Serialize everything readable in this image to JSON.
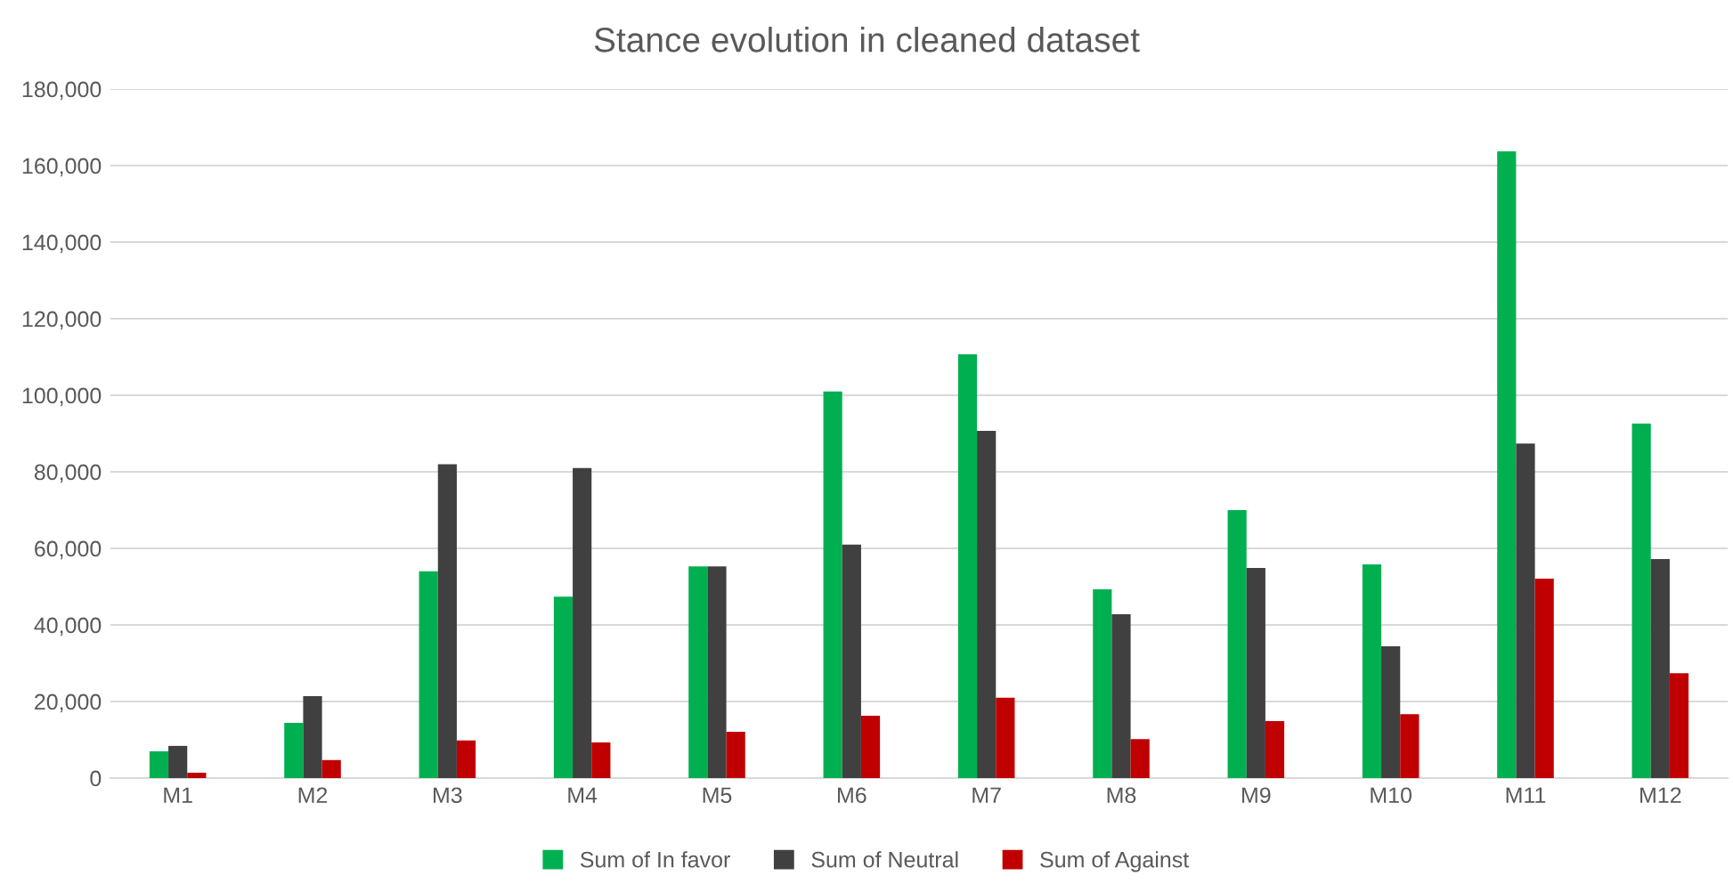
{
  "chart_data": {
    "type": "bar",
    "title": "Stance evolution in cleaned dataset",
    "categories": [
      "M1",
      "M2",
      "M3",
      "M4",
      "M5",
      "M6",
      "M7",
      "M8",
      "M9",
      "M10",
      "M11",
      "M12"
    ],
    "series": [
      {
        "name": "Sum of In favor",
        "color": "#00b050",
        "values": [
          7000,
          14400,
          54000,
          47400,
          55300,
          101000,
          110700,
          49300,
          70000,
          55800,
          163700,
          92600
        ]
      },
      {
        "name": "Sum of Neutral",
        "color": "#404040",
        "values": [
          8400,
          21400,
          82000,
          81000,
          55300,
          61000,
          90700,
          42800,
          54900,
          34400,
          87400,
          57200
        ]
      },
      {
        "name": "Sum of Against",
        "color": "#c00000",
        "values": [
          1400,
          4700,
          9800,
          9300,
          12100,
          16300,
          21000,
          10200,
          14900,
          16700,
          52100,
          27400
        ]
      }
    ],
    "ylim": [
      0,
      180000
    ],
    "yticks": [
      {
        "value": 0,
        "label": "0"
      },
      {
        "value": 20000,
        "label": "20,000"
      },
      {
        "value": 40000,
        "label": "40,000"
      },
      {
        "value": 60000,
        "label": "60,000"
      },
      {
        "value": 80000,
        "label": "80,000"
      },
      {
        "value": 100000,
        "label": "100,000"
      },
      {
        "value": 120000,
        "label": "120,000"
      },
      {
        "value": 140000,
        "label": "140,000"
      },
      {
        "value": 160000,
        "label": "160,000"
      },
      {
        "value": 180000,
        "label": "180,000"
      }
    ],
    "grid": "y",
    "legend": "bottom"
  }
}
